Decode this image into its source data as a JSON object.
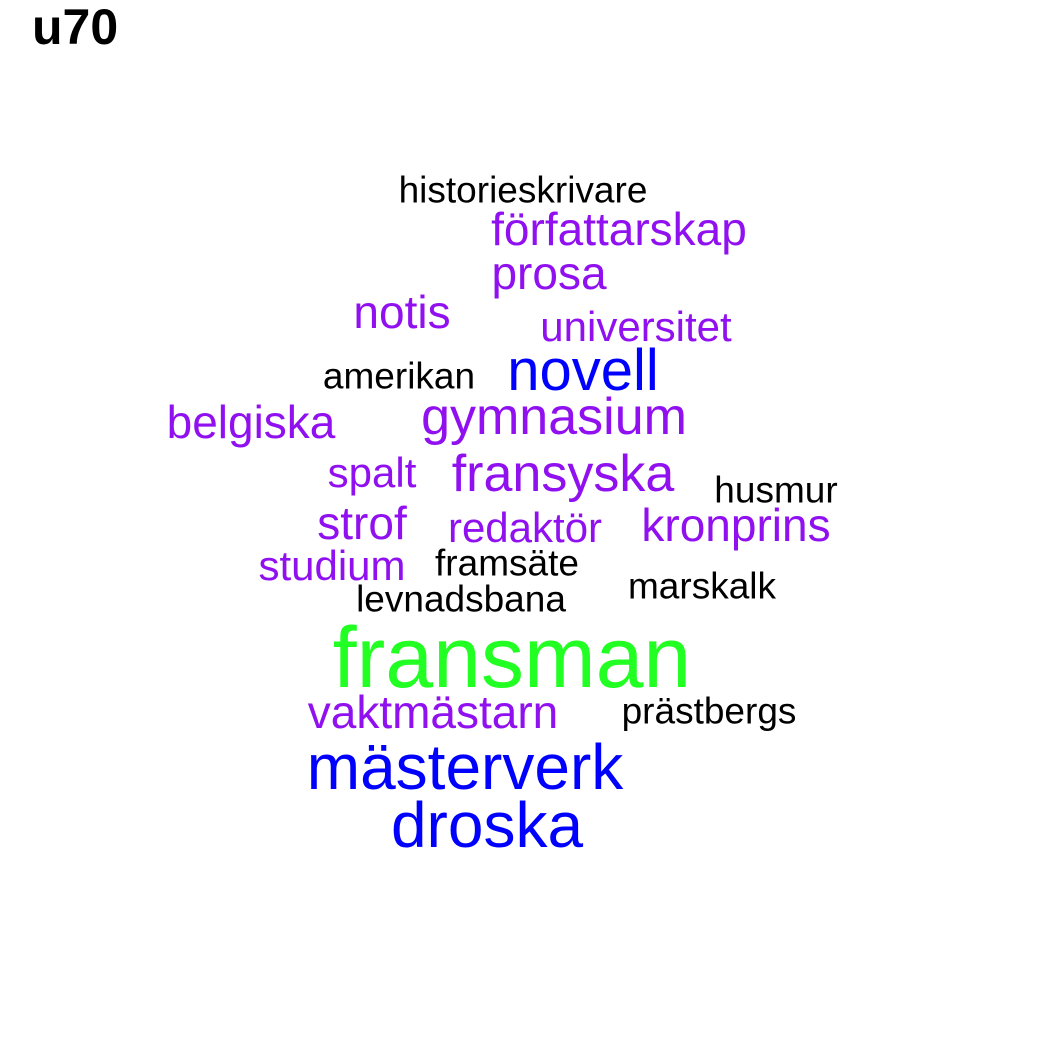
{
  "title": "u70",
  "colors": {
    "black": "#000000",
    "purple": "#9010F0",
    "blue": "#0000FF",
    "green": "#22FF22"
  },
  "words": {
    "historieskrivare": {
      "text": "historieskrivare",
      "color": "#000000"
    },
    "forfattarskap": {
      "text": "författarskap",
      "color": "#9010F0"
    },
    "prosa": {
      "text": "prosa",
      "color": "#9010F0"
    },
    "notis": {
      "text": "notis",
      "color": "#9010F0"
    },
    "universitet": {
      "text": "universitet",
      "color": "#9010F0"
    },
    "amerikan": {
      "text": "amerikan",
      "color": "#000000"
    },
    "novell": {
      "text": "novell",
      "color": "#0000FF"
    },
    "belgiska": {
      "text": "belgiska",
      "color": "#9010F0"
    },
    "gymnasium": {
      "text": "gymnasium",
      "color": "#9010F0"
    },
    "spalt": {
      "text": "spalt",
      "color": "#9010F0"
    },
    "fransyska": {
      "text": "fransyska",
      "color": "#9010F0"
    },
    "husmur": {
      "text": "husmur",
      "color": "#000000"
    },
    "strof": {
      "text": "strof",
      "color": "#9010F0"
    },
    "redaktor": {
      "text": "redaktör",
      "color": "#9010F0"
    },
    "kronprins": {
      "text": "kronprins",
      "color": "#9010F0"
    },
    "studium": {
      "text": "studium",
      "color": "#9010F0"
    },
    "framsate": {
      "text": "framsäte",
      "color": "#000000"
    },
    "marskalk": {
      "text": "marskalk",
      "color": "#000000"
    },
    "levnadsbana": {
      "text": "levnadsbana",
      "color": "#000000"
    },
    "fransman": {
      "text": "fransman",
      "color": "#22FF22"
    },
    "vaktmastarn": {
      "text": "vaktmästarn",
      "color": "#9010F0"
    },
    "prastbergs": {
      "text": "prästbergs",
      "color": "#000000"
    },
    "masterverk": {
      "text": "mästerverk",
      "color": "#0000FF"
    },
    "droska": {
      "text": "droska",
      "color": "#0000FF"
    }
  }
}
